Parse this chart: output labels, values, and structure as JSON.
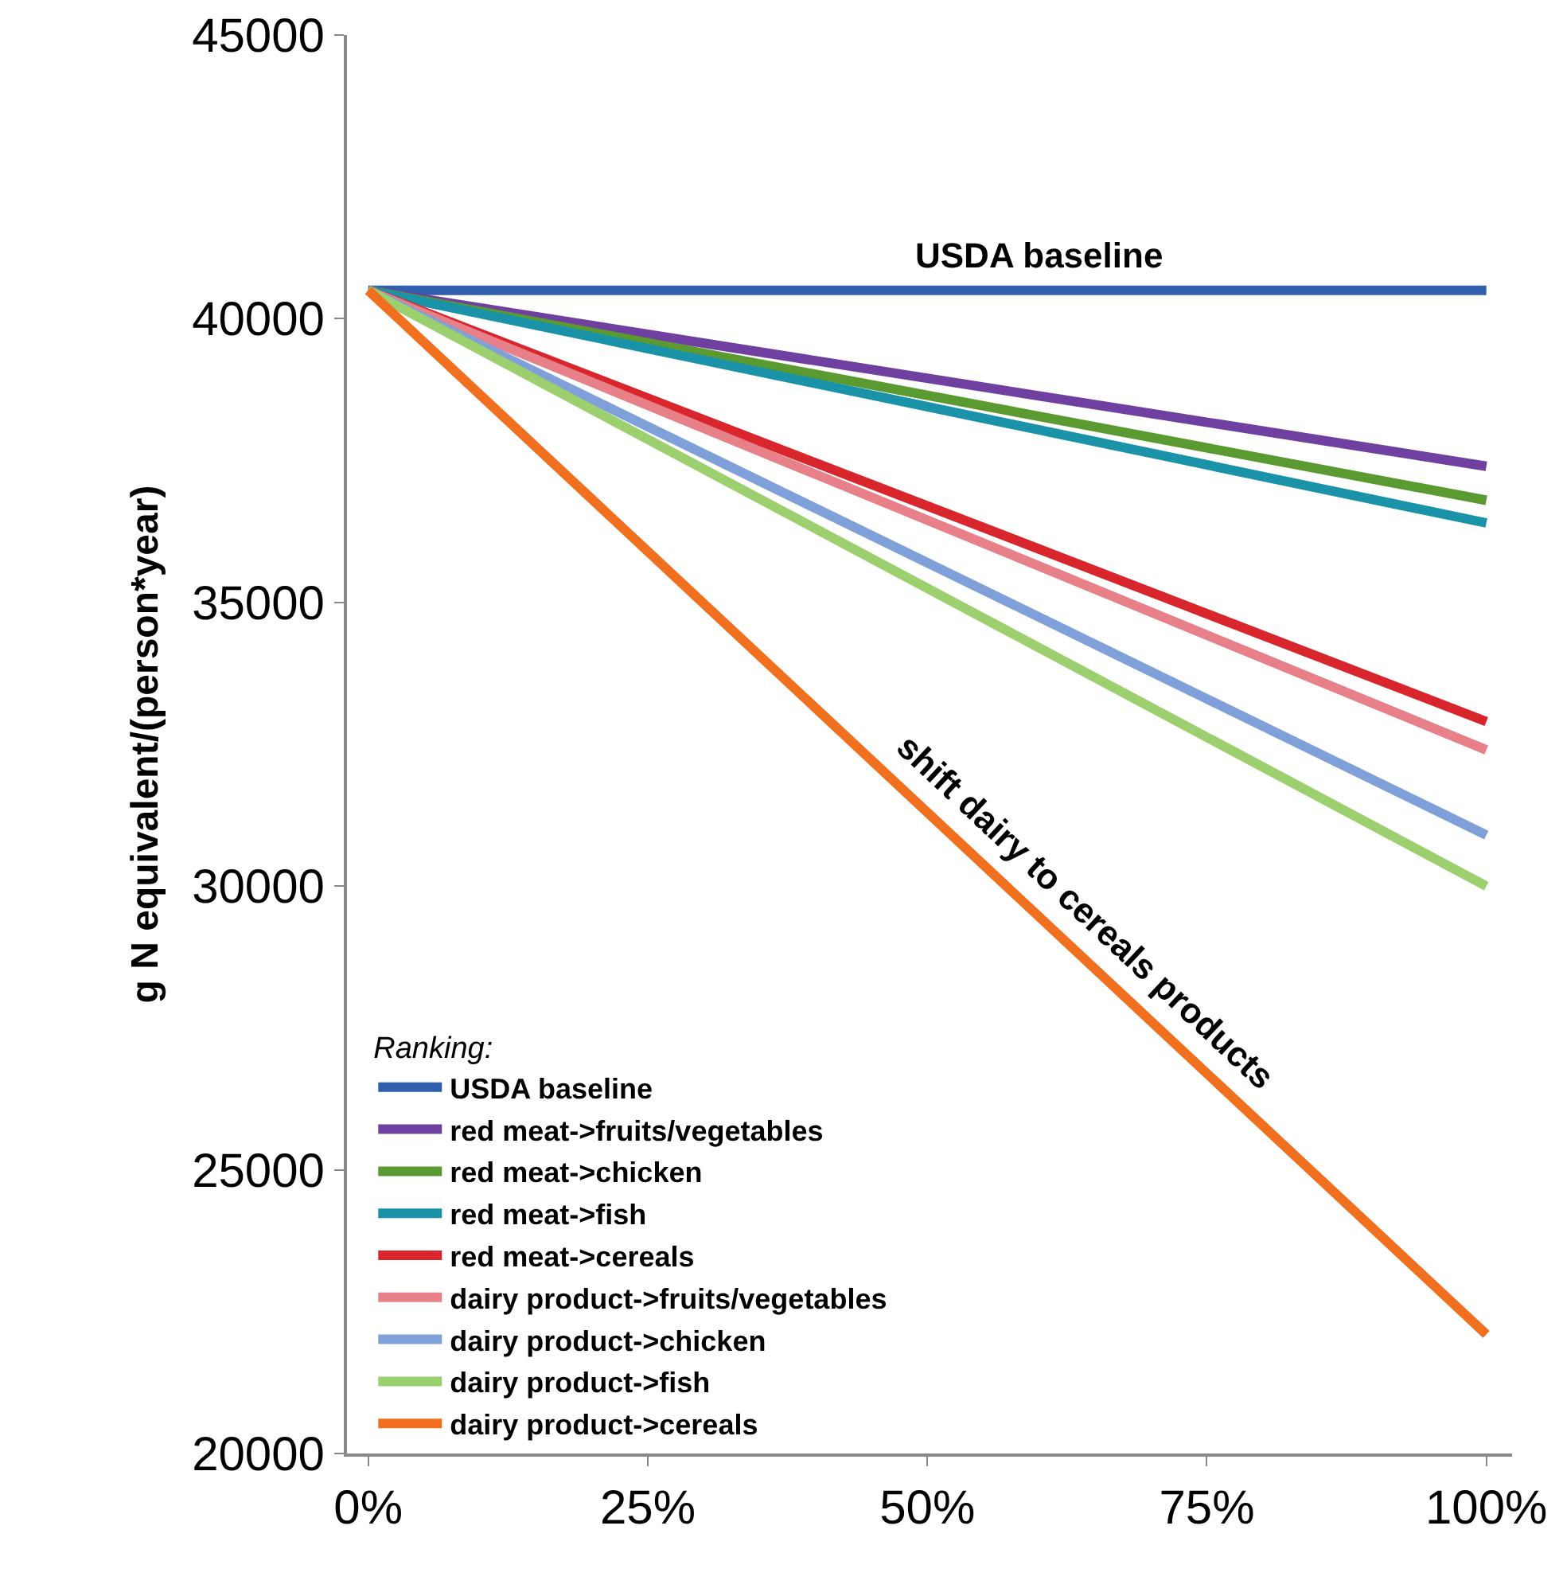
{
  "chart_data": {
    "type": "line",
    "ylabel": "g N equivalent/(person*year)",
    "legend_title": "Ranking:",
    "legend": "bottom left",
    "grid": false,
    "marker": "none",
    "line_style": "solid",
    "x": [
      0,
      100
    ],
    "xlim": [
      -1.9,
      102.3
    ],
    "xticks": [
      {
        "value": 0,
        "label": "0%"
      },
      {
        "value": 25,
        "label": "25%"
      },
      {
        "value": 50,
        "label": "50%"
      },
      {
        "value": 75,
        "label": "75%"
      },
      {
        "value": 100,
        "label": "100%"
      }
    ],
    "ylim": [
      20000,
      45000
    ],
    "yticks": [
      20000,
      25000,
      30000,
      35000,
      40000,
      45000
    ],
    "series": [
      {
        "name": "USDA baseline",
        "color": "#2f5fae",
        "values": [
          40500,
          40500
        ]
      },
      {
        "name": "red meat->fruits/vegetables",
        "color": "#7040a0",
        "values": [
          40500,
          37400
        ]
      },
      {
        "name": "red meat->chicken",
        "color": "#5a9a30",
        "values": [
          40500,
          36800
        ]
      },
      {
        "name": "red meat->fish",
        "color": "#1a93a8",
        "values": [
          40500,
          36400
        ]
      },
      {
        "name": "red meat->cereals",
        "color": "#d9262c",
        "values": [
          40500,
          32900
        ]
      },
      {
        "name": "dairy product->fruits/vegetables",
        "color": "#e8808a",
        "values": [
          40500,
          32400
        ]
      },
      {
        "name": "dairy product->chicken",
        "color": "#7fa0d8",
        "values": [
          40500,
          30900
        ]
      },
      {
        "name": "dairy product->fish",
        "color": "#9ccf6e",
        "values": [
          40500,
          30000
        ]
      },
      {
        "name": "dairy product->cereals",
        "color": "#f07020",
        "values": [
          40500,
          22100
        ]
      }
    ],
    "annotations": [
      {
        "text": "USDA baseline",
        "x": 60,
        "y": 40500
      },
      {
        "text": "shift dairy to cereals products",
        "x": 62,
        "y": 29100
      }
    ]
  }
}
